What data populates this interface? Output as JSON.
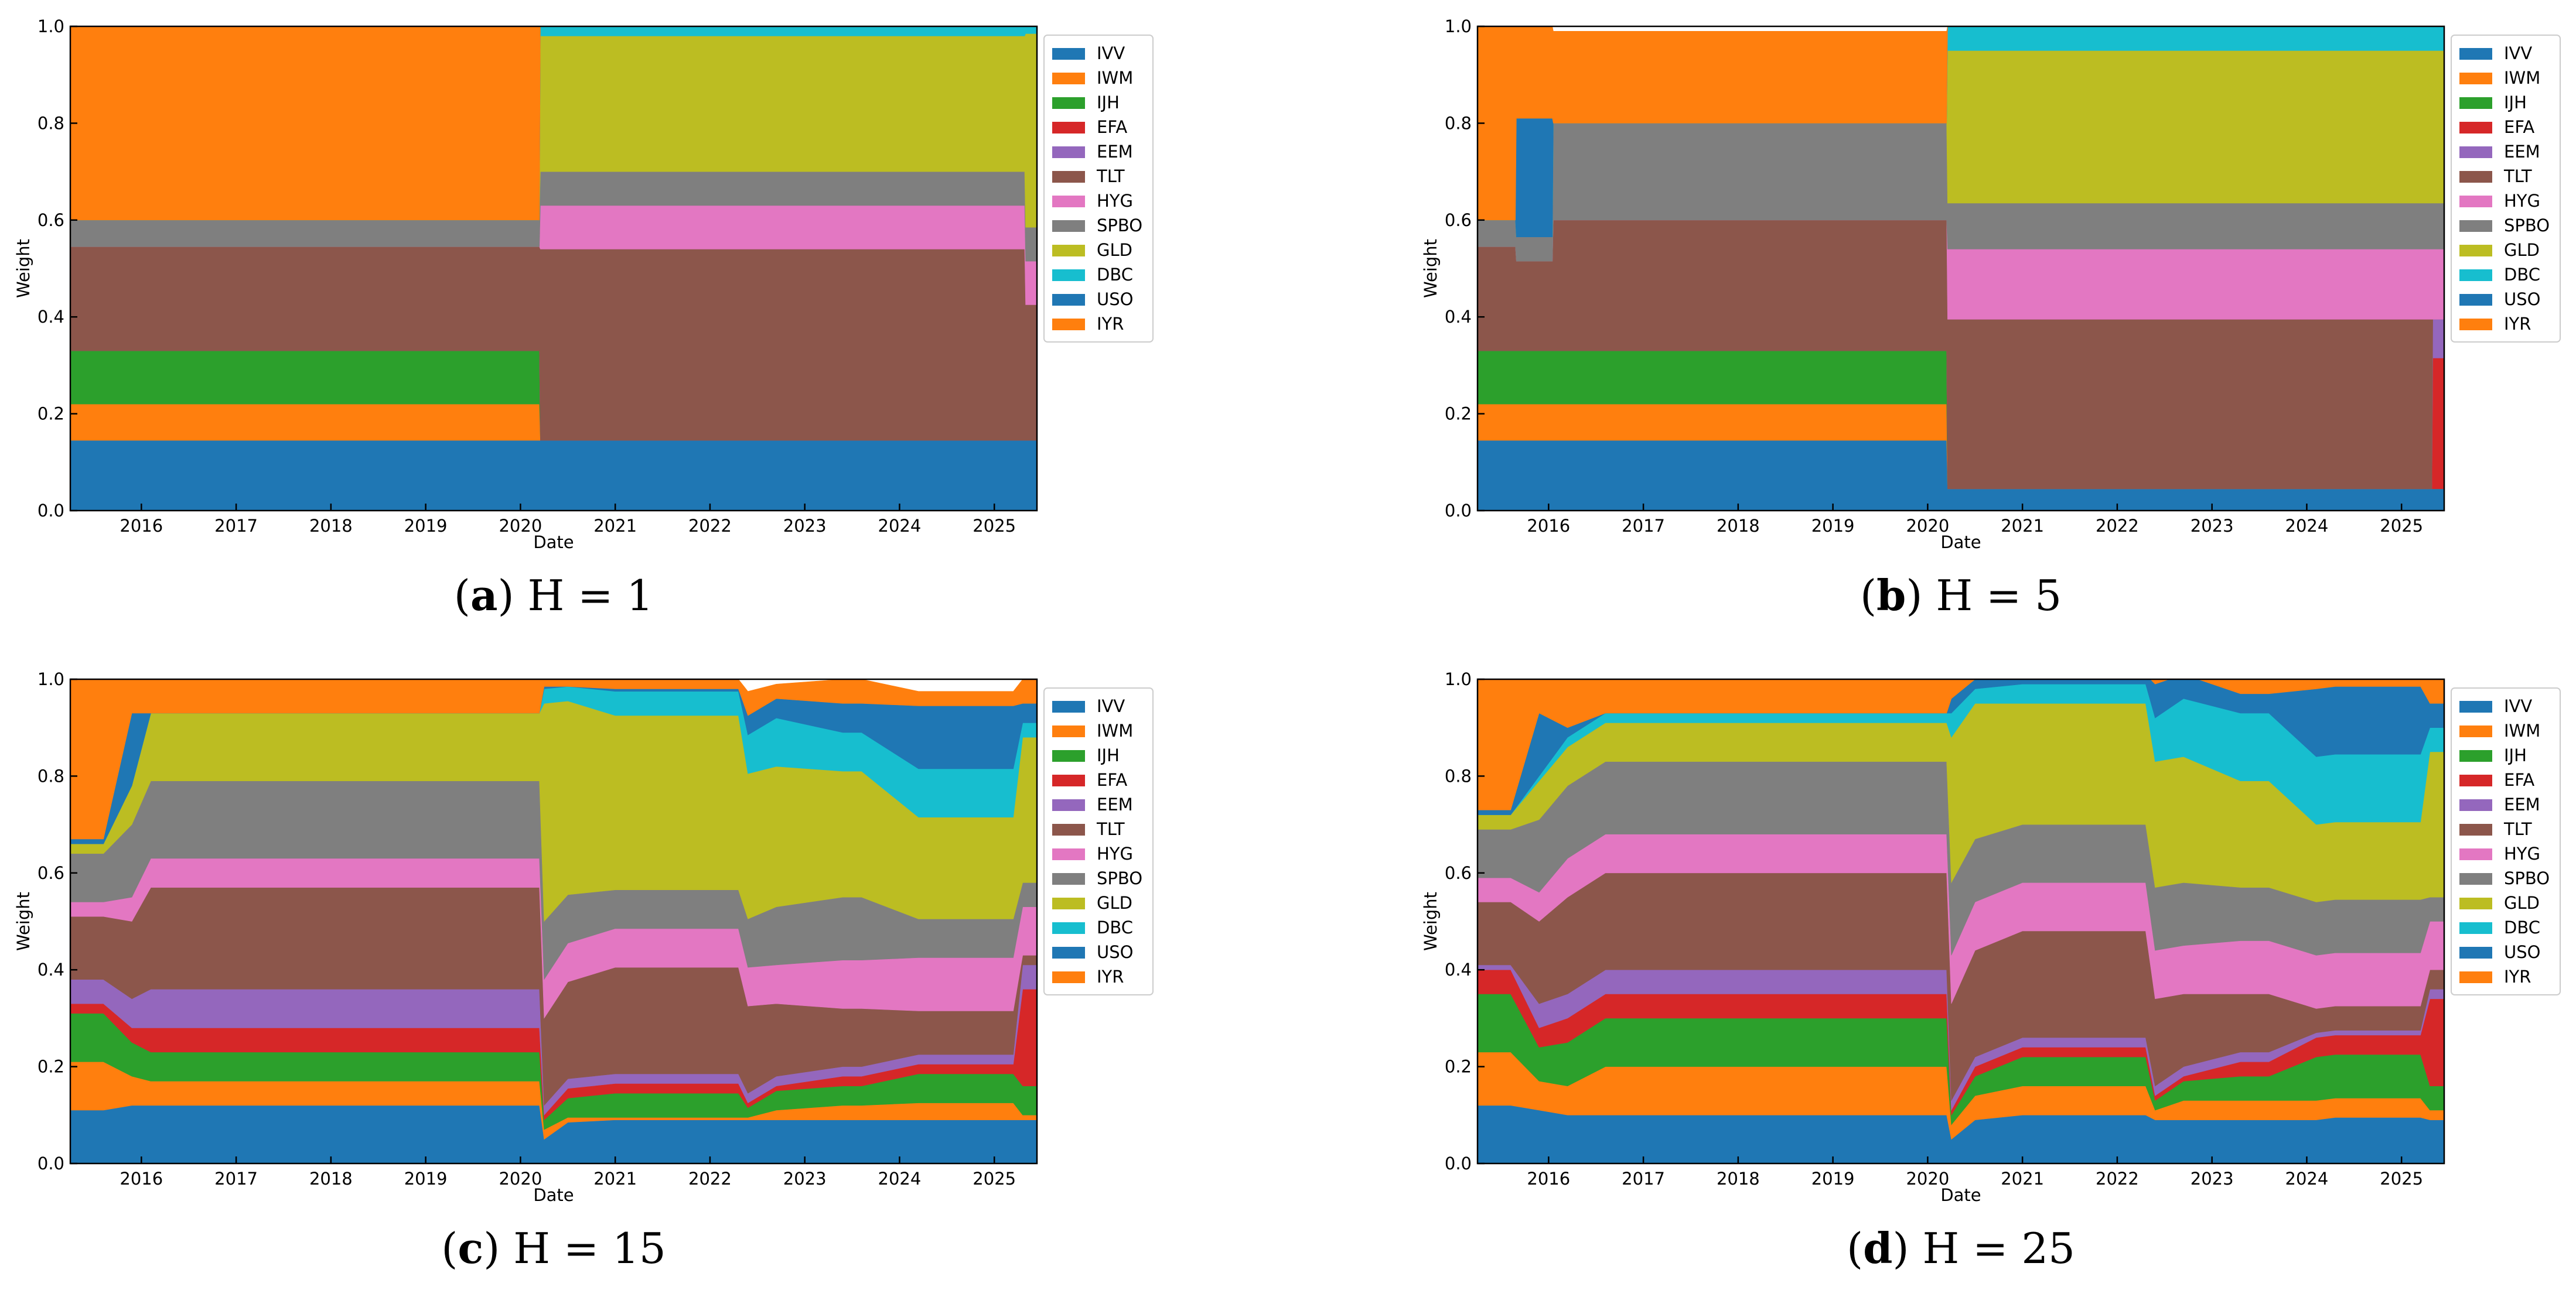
{
  "colors": {
    "IVV": "#1f77b4",
    "IWM": "#ff7f0e",
    "IJH": "#2ca02c",
    "EFA": "#d62728",
    "EEM": "#9467bd",
    "TLT": "#8c564b",
    "HYG": "#e377c2",
    "SPBO": "#7f7f7f",
    "GLD": "#bcbd22",
    "DBC": "#17becf",
    "USO": "#1f77b4",
    "IYR": "#ff7f0e"
  },
  "chart_data": [
    {
      "type": "area",
      "caption_label": "a",
      "caption_text": "H = 1",
      "xlabel": "Date",
      "ylabel": "Weight",
      "xlim": [
        2015.25,
        2025.45
      ],
      "ylim": [
        0,
        1.0
      ],
      "xticks": [
        "2016",
        "2017",
        "2018",
        "2019",
        "2020",
        "2021",
        "2022",
        "2023",
        "2024",
        "2025"
      ],
      "yticks": [
        "0.0",
        "0.2",
        "0.4",
        "0.6",
        "0.8",
        "1.0"
      ],
      "legend": [
        "IVV",
        "IWM",
        "IJH",
        "EFA",
        "EEM",
        "TLT",
        "HYG",
        "SPBO",
        "GLD",
        "DBC",
        "USO",
        "IYR"
      ],
      "x": [
        2015.25,
        2020.2,
        2020.21,
        2025.32,
        2025.33,
        2025.45
      ],
      "series": [
        {
          "name": "IVV",
          "values": [
            0.145,
            0.145,
            0.145,
            0.145,
            0.145,
            0.145
          ]
        },
        {
          "name": "IWM",
          "values": [
            0.075,
            0.075,
            0,
            0,
            0,
            0
          ]
        },
        {
          "name": "IJH",
          "values": [
            0.11,
            0.11,
            0,
            0,
            0,
            0
          ]
        },
        {
          "name": "EFA",
          "values": [
            0,
            0,
            0,
            0,
            0,
            0
          ]
        },
        {
          "name": "EEM",
          "values": [
            0,
            0,
            0,
            0,
            0,
            0
          ]
        },
        {
          "name": "TLT",
          "values": [
            0.215,
            0.215,
            0.395,
            0.395,
            0.28,
            0.28
          ]
        },
        {
          "name": "HYG",
          "values": [
            0,
            0,
            0.09,
            0.09,
            0.09,
            0.09
          ]
        },
        {
          "name": "SPBO",
          "values": [
            0.055,
            0.055,
            0.07,
            0.07,
            0.07,
            0.07
          ]
        },
        {
          "name": "GLD",
          "values": [
            0,
            0,
            0.28,
            0.28,
            0.4,
            0.4
          ]
        },
        {
          "name": "DBC",
          "values": [
            0,
            0,
            0.02,
            0.02,
            0.015,
            0.015
          ]
        },
        {
          "name": "USO",
          "values": [
            0,
            0,
            0,
            0,
            0,
            0
          ]
        },
        {
          "name": "IYR",
          "values": [
            0.4,
            0.4,
            0,
            0,
            0,
            0
          ]
        }
      ]
    },
    {
      "type": "area",
      "caption_label": "b",
      "caption_text": "H = 5",
      "xlabel": "Date",
      "ylabel": "Weight",
      "xlim": [
        2015.25,
        2025.45
      ],
      "ylim": [
        0,
        1.0
      ],
      "xticks": [
        "2016",
        "2017",
        "2018",
        "2019",
        "2020",
        "2021",
        "2022",
        "2023",
        "2024",
        "2025"
      ],
      "yticks": [
        "0.0",
        "0.2",
        "0.4",
        "0.6",
        "0.8",
        "1.0"
      ],
      "legend": [
        "IVV",
        "IWM",
        "IJH",
        "EFA",
        "EEM",
        "TLT",
        "HYG",
        "SPBO",
        "GLD",
        "DBC",
        "USO",
        "IYR"
      ],
      "x": [
        2015.25,
        2015.65,
        2015.66,
        2016.04,
        2016.05,
        2020.2,
        2020.21,
        2025.32,
        2025.33,
        2025.45
      ],
      "series": [
        {
          "name": "IVV",
          "values": [
            0.145,
            0.145,
            0.145,
            0.145,
            0.145,
            0.145,
            0.045,
            0.045,
            0.045,
            0.045
          ]
        },
        {
          "name": "IWM",
          "values": [
            0.075,
            0.075,
            0.075,
            0.075,
            0.075,
            0.075,
            0,
            0,
            0,
            0
          ]
        },
        {
          "name": "IJH",
          "values": [
            0.11,
            0.11,
            0.11,
            0.11,
            0.11,
            0.11,
            0,
            0,
            0,
            0
          ]
        },
        {
          "name": "EFA",
          "values": [
            0,
            0,
            0,
            0,
            0,
            0,
            0,
            0,
            0.27,
            0.27
          ]
        },
        {
          "name": "EEM",
          "values": [
            0,
            0,
            0,
            0,
            0,
            0,
            0,
            0,
            0.08,
            0.08
          ]
        },
        {
          "name": "TLT",
          "values": [
            0.215,
            0.215,
            0.185,
            0.185,
            0.27,
            0.27,
            0.35,
            0.35,
            0,
            0
          ]
        },
        {
          "name": "HYG",
          "values": [
            0,
            0,
            0,
            0,
            0,
            0,
            0.145,
            0.145,
            0.145,
            0.145
          ]
        },
        {
          "name": "SPBO",
          "values": [
            0.055,
            0.055,
            0.05,
            0.05,
            0.2,
            0.2,
            0.095,
            0.095,
            0.095,
            0.095
          ]
        },
        {
          "name": "GLD",
          "values": [
            0,
            0,
            0,
            0,
            0,
            0,
            0.315,
            0.315,
            0.315,
            0.315
          ]
        },
        {
          "name": "DBC",
          "values": [
            0,
            0,
            0,
            0,
            0,
            0,
            0.05,
            0.05,
            0.05,
            0.05
          ]
        },
        {
          "name": "USO",
          "values": [
            0,
            0,
            0.245,
            0.245,
            0,
            0,
            0,
            0,
            0,
            0
          ]
        },
        {
          "name": "IYR",
          "values": [
            0.4,
            0.4,
            0.19,
            0.19,
            0.19,
            0.19,
            0,
            0,
            0,
            0
          ]
        }
      ]
    },
    {
      "type": "area",
      "caption_label": "c",
      "caption_text": "H = 15",
      "xlabel": "Date",
      "ylabel": "Weight",
      "xlim": [
        2015.25,
        2025.45
      ],
      "ylim": [
        0,
        1.0
      ],
      "xticks": [
        "2016",
        "2017",
        "2018",
        "2019",
        "2020",
        "2021",
        "2022",
        "2023",
        "2024",
        "2025"
      ],
      "yticks": [
        "0.0",
        "0.2",
        "0.4",
        "0.6",
        "0.8",
        "1.0"
      ],
      "legend": [
        "IVV",
        "IWM",
        "IJH",
        "EFA",
        "EEM",
        "TLT",
        "HYG",
        "SPBO",
        "GLD",
        "DBC",
        "USO",
        "IYR"
      ],
      "x": [
        2015.25,
        2015.6,
        2015.9,
        2016.1,
        2016.4,
        2020.2,
        2020.25,
        2020.5,
        2021.0,
        2022.3,
        2022.4,
        2022.7,
        2023.4,
        2023.6,
        2024.2,
        2024.4,
        2025.2,
        2025.3,
        2025.45
      ],
      "series": [
        {
          "name": "IVV",
          "values": [
            0.11,
            0.11,
            0.12,
            0.12,
            0.12,
            0.12,
            0.05,
            0.085,
            0.09,
            0.09,
            0.09,
            0.09,
            0.09,
            0.09,
            0.09,
            0.09,
            0.09,
            0.09,
            0.09
          ]
        },
        {
          "name": "IWM",
          "values": [
            0.1,
            0.1,
            0.06,
            0.05,
            0.05,
            0.05,
            0.02,
            0.01,
            0.005,
            0.005,
            0.005,
            0.02,
            0.03,
            0.03,
            0.035,
            0.035,
            0.035,
            0.01,
            0.01
          ]
        },
        {
          "name": "IJH",
          "values": [
            0.1,
            0.1,
            0.07,
            0.06,
            0.06,
            0.06,
            0.02,
            0.04,
            0.05,
            0.05,
            0.02,
            0.04,
            0.04,
            0.04,
            0.06,
            0.06,
            0.06,
            0.06,
            0.06
          ]
        },
        {
          "name": "EFA",
          "values": [
            0.02,
            0.02,
            0.03,
            0.05,
            0.05,
            0.05,
            0.01,
            0.02,
            0.02,
            0.02,
            0.01,
            0.01,
            0.02,
            0.02,
            0.02,
            0.02,
            0.02,
            0.2,
            0.2
          ]
        },
        {
          "name": "EEM",
          "values": [
            0.05,
            0.05,
            0.06,
            0.08,
            0.08,
            0.08,
            0.02,
            0.02,
            0.02,
            0.02,
            0.02,
            0.02,
            0.02,
            0.02,
            0.02,
            0.02,
            0.02,
            0.05,
            0.05
          ]
        },
        {
          "name": "TLT",
          "values": [
            0.13,
            0.13,
            0.16,
            0.21,
            0.21,
            0.21,
            0.18,
            0.2,
            0.22,
            0.22,
            0.18,
            0.15,
            0.12,
            0.12,
            0.09,
            0.09,
            0.09,
            0.02,
            0.02
          ]
        },
        {
          "name": "HYG",
          "values": [
            0.03,
            0.03,
            0.05,
            0.06,
            0.06,
            0.06,
            0.08,
            0.08,
            0.08,
            0.08,
            0.08,
            0.08,
            0.1,
            0.1,
            0.11,
            0.11,
            0.11,
            0.1,
            0.1
          ]
        },
        {
          "name": "SPBO",
          "values": [
            0.1,
            0.1,
            0.15,
            0.16,
            0.16,
            0.16,
            0.12,
            0.1,
            0.08,
            0.08,
            0.1,
            0.12,
            0.13,
            0.13,
            0.08,
            0.08,
            0.08,
            0.05,
            0.05
          ]
        },
        {
          "name": "GLD",
          "values": [
            0.02,
            0.02,
            0.08,
            0.14,
            0.14,
            0.14,
            0.45,
            0.4,
            0.36,
            0.36,
            0.3,
            0.29,
            0.26,
            0.26,
            0.21,
            0.21,
            0.21,
            0.3,
            0.3
          ]
        },
        {
          "name": "DBC",
          "values": [
            0,
            0,
            0,
            0,
            0,
            0,
            0.03,
            0.03,
            0.05,
            0.05,
            0.08,
            0.1,
            0.08,
            0.08,
            0.1,
            0.1,
            0.1,
            0.03,
            0.03
          ]
        },
        {
          "name": "USO",
          "values": [
            0.01,
            0.01,
            0.15,
            0,
            0,
            0,
            0.005,
            0,
            0.005,
            0.005,
            0.04,
            0.04,
            0.06,
            0.06,
            0.13,
            0.13,
            0.13,
            0.04,
            0.04
          ]
        },
        {
          "name": "IYR",
          "values": [
            0.33,
            0.33,
            0.07,
            0.07,
            0.07,
            0.07,
            0.02,
            0.02,
            0.02,
            0.02,
            0.05,
            0.03,
            0.05,
            0.05,
            0.03,
            0.03,
            0.03,
            0.05,
            0.05
          ]
        }
      ]
    },
    {
      "type": "area",
      "caption_label": "d",
      "caption_text": "H = 25",
      "xlabel": "Date",
      "ylabel": "Weight",
      "xlim": [
        2015.25,
        2025.45
      ],
      "ylim": [
        0,
        1.0
      ],
      "xticks": [
        "2016",
        "2017",
        "2018",
        "2019",
        "2020",
        "2021",
        "2022",
        "2023",
        "2024",
        "2025"
      ],
      "yticks": [
        "0.0",
        "0.2",
        "0.4",
        "0.6",
        "0.8",
        "1.0"
      ],
      "legend": [
        "IVV",
        "IWM",
        "IJH",
        "EFA",
        "EEM",
        "TLT",
        "HYG",
        "SPBO",
        "GLD",
        "DBC",
        "USO",
        "IYR"
      ],
      "x": [
        2015.25,
        2015.6,
        2015.9,
        2016.2,
        2016.6,
        2020.2,
        2020.25,
        2020.5,
        2021.0,
        2022.3,
        2022.4,
        2022.7,
        2023.3,
        2023.6,
        2024.1,
        2024.3,
        2025.2,
        2025.3,
        2025.45
      ],
      "series": [
        {
          "name": "IVV",
          "values": [
            0.12,
            0.12,
            0.11,
            0.1,
            0.1,
            0.1,
            0.05,
            0.09,
            0.1,
            0.1,
            0.09,
            0.09,
            0.09,
            0.09,
            0.09,
            0.095,
            0.095,
            0.09,
            0.09
          ]
        },
        {
          "name": "IWM",
          "values": [
            0.11,
            0.11,
            0.06,
            0.06,
            0.1,
            0.1,
            0.03,
            0.05,
            0.06,
            0.06,
            0.02,
            0.04,
            0.04,
            0.04,
            0.04,
            0.04,
            0.04,
            0.02,
            0.02
          ]
        },
        {
          "name": "IJH",
          "values": [
            0.12,
            0.12,
            0.07,
            0.09,
            0.1,
            0.1,
            0.02,
            0.04,
            0.06,
            0.06,
            0.02,
            0.04,
            0.05,
            0.05,
            0.09,
            0.09,
            0.09,
            0.05,
            0.05
          ]
        },
        {
          "name": "EFA",
          "values": [
            0.05,
            0.05,
            0.04,
            0.05,
            0.05,
            0.05,
            0.01,
            0.02,
            0.02,
            0.02,
            0.01,
            0.01,
            0.03,
            0.03,
            0.04,
            0.04,
            0.04,
            0.18,
            0.18
          ]
        },
        {
          "name": "EEM",
          "values": [
            0.01,
            0.01,
            0.05,
            0.05,
            0.05,
            0.05,
            0.02,
            0.02,
            0.02,
            0.02,
            0.02,
            0.02,
            0.02,
            0.02,
            0.01,
            0.01,
            0.01,
            0.02,
            0.02
          ]
        },
        {
          "name": "TLT",
          "values": [
            0.13,
            0.13,
            0.17,
            0.2,
            0.2,
            0.2,
            0.2,
            0.22,
            0.22,
            0.22,
            0.18,
            0.15,
            0.12,
            0.12,
            0.05,
            0.05,
            0.05,
            0.04,
            0.04
          ]
        },
        {
          "name": "HYG",
          "values": [
            0.05,
            0.05,
            0.06,
            0.08,
            0.08,
            0.08,
            0.1,
            0.1,
            0.1,
            0.1,
            0.1,
            0.1,
            0.11,
            0.11,
            0.11,
            0.11,
            0.11,
            0.1,
            0.1
          ]
        },
        {
          "name": "SPBO",
          "values": [
            0.1,
            0.1,
            0.15,
            0.15,
            0.15,
            0.15,
            0.15,
            0.13,
            0.12,
            0.12,
            0.13,
            0.13,
            0.11,
            0.11,
            0.11,
            0.11,
            0.11,
            0.05,
            0.05
          ]
        },
        {
          "name": "GLD",
          "values": [
            0.03,
            0.03,
            0.08,
            0.08,
            0.08,
            0.08,
            0.3,
            0.28,
            0.25,
            0.25,
            0.26,
            0.26,
            0.22,
            0.22,
            0.16,
            0.16,
            0.16,
            0.3,
            0.3
          ]
        },
        {
          "name": "DBC",
          "values": [
            0,
            0,
            0.01,
            0.02,
            0.02,
            0.02,
            0.05,
            0.03,
            0.04,
            0.04,
            0.09,
            0.12,
            0.14,
            0.14,
            0.14,
            0.14,
            0.14,
            0.05,
            0.05
          ]
        },
        {
          "name": "USO",
          "values": [
            0.01,
            0.01,
            0.13,
            0.02,
            0,
            0,
            0.03,
            0.02,
            0.02,
            0.02,
            0.07,
            0.05,
            0.04,
            0.04,
            0.14,
            0.14,
            0.14,
            0.05,
            0.05
          ]
        },
        {
          "name": "IYR",
          "values": [
            0.27,
            0.27,
            0.07,
            0.1,
            0.07,
            0.07,
            0.04,
            0.02,
            0.02,
            0.02,
            0.05,
            0.04,
            0.04,
            0.04,
            0.02,
            0.015,
            0.015,
            0.05,
            0.05
          ]
        }
      ]
    }
  ]
}
